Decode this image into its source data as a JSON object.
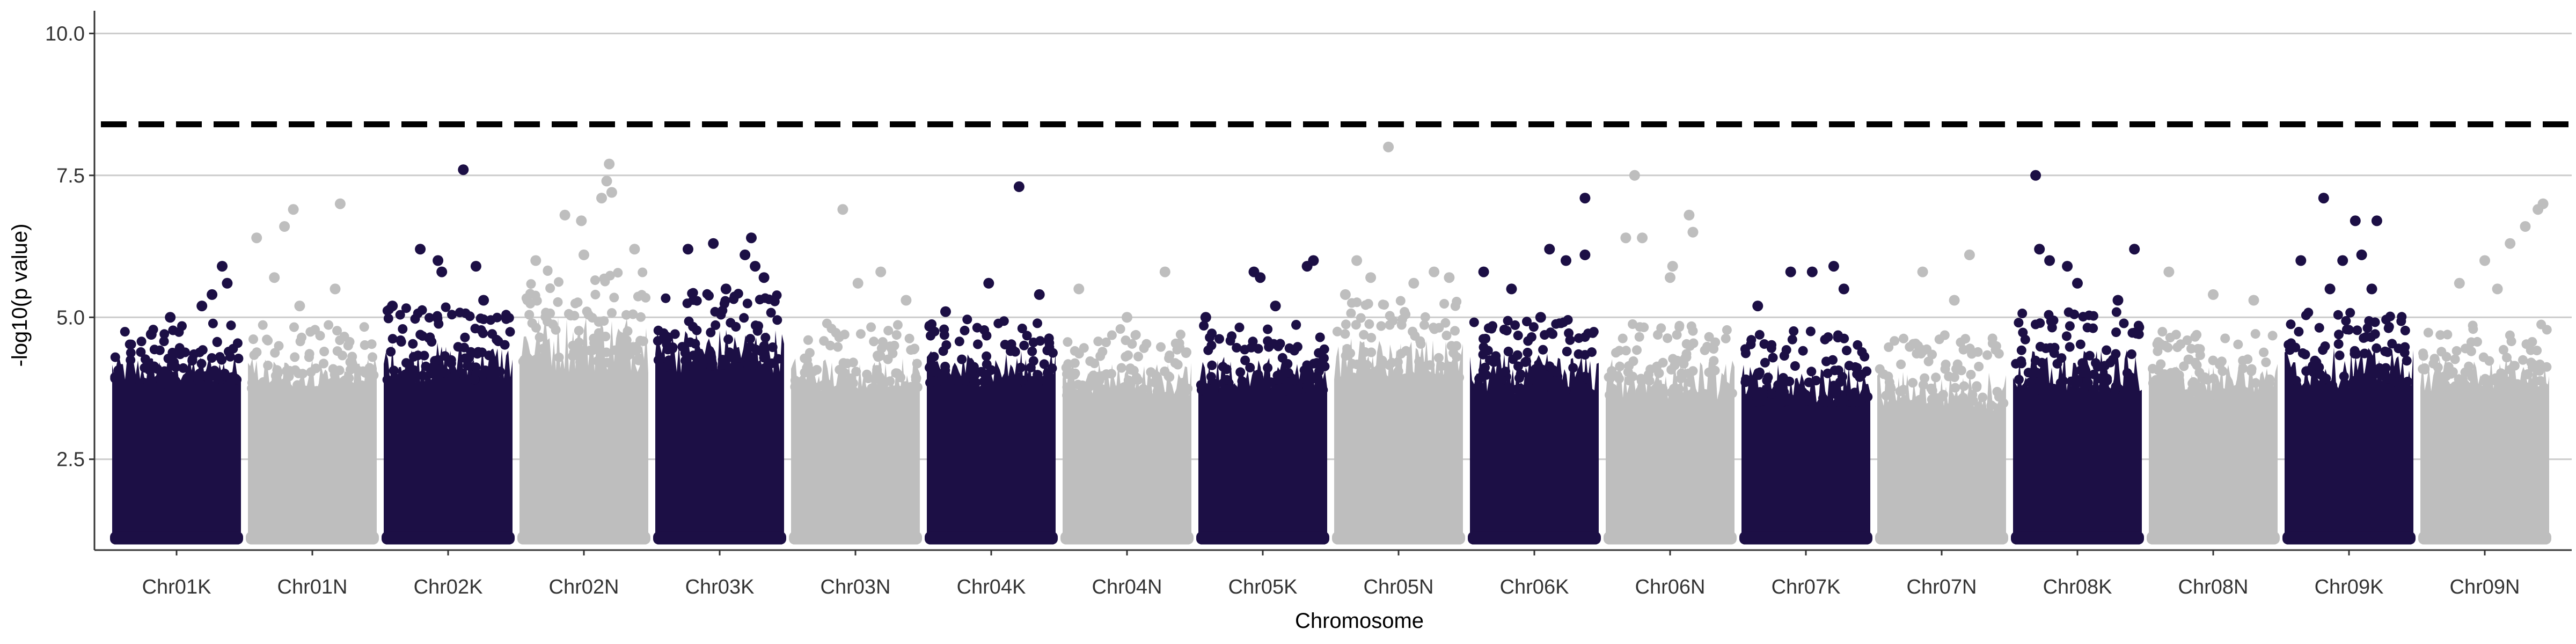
{
  "chart_data": {
    "type": "scatter",
    "subtype": "manhattan",
    "title": "",
    "xlabel": "Chromosome",
    "ylabel": "-log10(p value)",
    "ylim": [
      0.9,
      10.4
    ],
    "yticks": [
      2.5,
      5.0,
      7.5,
      10.0
    ],
    "ytick_labels": [
      "2.5",
      "5.0",
      "7.5",
      "10.0"
    ],
    "grid": {
      "horizontal": true,
      "vertical": false
    },
    "threshold": {
      "value": 8.4,
      "style": "dashed",
      "color": "#000000"
    },
    "colors": {
      "odd": "#1c0f45",
      "even": "#bebebe",
      "grid": "#cccccc",
      "axis": "#333333"
    },
    "categories": [
      "Chr01K",
      "Chr01N",
      "Chr02K",
      "Chr02N",
      "Chr03K",
      "Chr03N",
      "Chr04K",
      "Chr04N",
      "Chr05K",
      "Chr05N",
      "Chr06K",
      "Chr06N",
      "Chr07K",
      "Chr07N",
      "Chr08K",
      "Chr08N",
      "Chr09K",
      "Chr09N"
    ],
    "series": [
      {
        "chromosome": "Chr01K",
        "min": 1.0,
        "dense_top": 4.0,
        "band_top": 4.6,
        "points": [
          [
            0.45,
            5.0
          ],
          [
            0.7,
            5.2
          ],
          [
            0.78,
            5.4
          ],
          [
            0.86,
            5.9
          ],
          [
            0.9,
            5.6
          ],
          [
            0.3,
            4.7
          ]
        ]
      },
      {
        "chromosome": "Chr01N",
        "min": 1.0,
        "dense_top": 3.9,
        "band_top": 4.6,
        "points": [
          [
            0.06,
            6.4
          ],
          [
            0.2,
            5.7
          ],
          [
            0.28,
            6.6
          ],
          [
            0.35,
            6.9
          ],
          [
            0.72,
            7.0
          ],
          [
            0.68,
            5.5
          ],
          [
            0.4,
            5.2
          ]
        ]
      },
      {
        "chromosome": "Chr02K",
        "min": 1.0,
        "dense_top": 4.1,
        "band_top": 4.9,
        "points": [
          [
            0.06,
            5.2
          ],
          [
            0.28,
            6.2
          ],
          [
            0.42,
            6.0
          ],
          [
            0.45,
            5.8
          ],
          [
            0.62,
            7.6
          ],
          [
            0.72,
            5.9
          ],
          [
            0.78,
            5.3
          ]
        ]
      },
      {
        "chromosome": "Chr02N",
        "min": 1.0,
        "dense_top": 4.4,
        "band_top": 5.6,
        "points": [
          [
            0.12,
            6.0
          ],
          [
            0.35,
            6.8
          ],
          [
            0.48,
            6.7
          ],
          [
            0.64,
            7.1
          ],
          [
            0.68,
            7.4
          ],
          [
            0.7,
            7.7
          ],
          [
            0.72,
            7.2
          ],
          [
            0.5,
            6.1
          ],
          [
            0.9,
            6.2
          ]
        ]
      },
      {
        "chromosome": "Chr03K",
        "min": 1.0,
        "dense_top": 4.3,
        "band_top": 5.2,
        "points": [
          [
            0.25,
            6.2
          ],
          [
            0.45,
            6.3
          ],
          [
            0.7,
            6.1
          ],
          [
            0.75,
            6.4
          ],
          [
            0.78,
            5.9
          ],
          [
            0.85,
            5.7
          ],
          [
            0.55,
            5.5
          ]
        ]
      },
      {
        "chromosome": "Chr03N",
        "min": 1.0,
        "dense_top": 3.9,
        "band_top": 4.6,
        "points": [
          [
            0.4,
            6.9
          ],
          [
            0.52,
            5.6
          ],
          [
            0.7,
            5.8
          ],
          [
            0.9,
            5.3
          ]
        ]
      },
      {
        "chromosome": "Chr04K",
        "min": 1.0,
        "dense_top": 4.0,
        "band_top": 4.7,
        "points": [
          [
            0.14,
            5.1
          ],
          [
            0.48,
            5.6
          ],
          [
            0.72,
            7.3
          ],
          [
            0.88,
            5.4
          ]
        ]
      },
      {
        "chromosome": "Chr04N",
        "min": 1.0,
        "dense_top": 3.8,
        "band_top": 4.5,
        "points": [
          [
            0.12,
            5.5
          ],
          [
            0.8,
            5.8
          ],
          [
            0.5,
            5.0
          ]
        ]
      },
      {
        "chromosome": "Chr05K",
        "min": 1.0,
        "dense_top": 3.9,
        "band_top": 4.6,
        "points": [
          [
            0.05,
            5.0
          ],
          [
            0.43,
            5.8
          ],
          [
            0.48,
            5.7
          ],
          [
            0.6,
            5.2
          ],
          [
            0.85,
            5.9
          ],
          [
            0.9,
            6.0
          ]
        ]
      },
      {
        "chromosome": "Chr05N",
        "min": 1.0,
        "dense_top": 4.1,
        "band_top": 5.0,
        "points": [
          [
            0.08,
            5.4
          ],
          [
            0.17,
            6.0
          ],
          [
            0.28,
            5.7
          ],
          [
            0.42,
            8.0
          ],
          [
            0.62,
            5.6
          ],
          [
            0.78,
            5.8
          ],
          [
            0.9,
            5.7
          ]
        ]
      },
      {
        "chromosome": "Chr06K",
        "min": 1.0,
        "dense_top": 3.9,
        "band_top": 4.7,
        "points": [
          [
            0.1,
            5.8
          ],
          [
            0.32,
            5.5
          ],
          [
            0.62,
            6.2
          ],
          [
            0.75,
            6.0
          ],
          [
            0.9,
            7.1
          ],
          [
            0.9,
            6.1
          ],
          [
            0.55,
            5.0
          ]
        ]
      },
      {
        "chromosome": "Chr06N",
        "min": 1.0,
        "dense_top": 3.8,
        "band_top": 4.6,
        "points": [
          [
            0.15,
            6.4
          ],
          [
            0.22,
            7.5
          ],
          [
            0.28,
            6.4
          ],
          [
            0.52,
            5.9
          ],
          [
            0.65,
            6.8
          ],
          [
            0.68,
            6.5
          ],
          [
            0.5,
            5.7
          ]
        ]
      },
      {
        "chromosome": "Chr07K",
        "min": 1.0,
        "dense_top": 3.7,
        "band_top": 4.5,
        "points": [
          [
            0.12,
            5.2
          ],
          [
            0.38,
            5.8
          ],
          [
            0.55,
            5.8
          ],
          [
            0.72,
            5.9
          ],
          [
            0.8,
            5.5
          ]
        ]
      },
      {
        "chromosome": "Chr07N",
        "min": 1.0,
        "dense_top": 3.6,
        "band_top": 4.4,
        "points": [
          [
            0.35,
            5.8
          ],
          [
            0.72,
            6.1
          ],
          [
            0.6,
            5.3
          ]
        ]
      },
      {
        "chromosome": "Chr08K",
        "min": 1.0,
        "dense_top": 3.9,
        "band_top": 4.8,
        "points": [
          [
            0.17,
            7.5
          ],
          [
            0.2,
            6.2
          ],
          [
            0.28,
            6.0
          ],
          [
            0.42,
            5.9
          ],
          [
            0.5,
            5.6
          ],
          [
            0.95,
            6.2
          ],
          [
            0.82,
            5.3
          ]
        ]
      },
      {
        "chromosome": "Chr08N",
        "min": 1.0,
        "dense_top": 3.8,
        "band_top": 4.5,
        "points": [
          [
            0.15,
            5.8
          ],
          [
            0.5,
            5.4
          ],
          [
            0.82,
            5.3
          ]
        ]
      },
      {
        "chromosome": "Chr09K",
        "min": 1.0,
        "dense_top": 4.0,
        "band_top": 4.8,
        "points": [
          [
            0.12,
            6.0
          ],
          [
            0.3,
            7.1
          ],
          [
            0.35,
            5.5
          ],
          [
            0.45,
            6.0
          ],
          [
            0.55,
            6.7
          ],
          [
            0.6,
            6.1
          ],
          [
            0.72,
            6.7
          ],
          [
            0.68,
            5.5
          ]
        ]
      },
      {
        "chromosome": "Chr09N",
        "min": 1.0,
        "dense_top": 3.9,
        "band_top": 4.6,
        "points": [
          [
            0.3,
            5.6
          ],
          [
            0.5,
            6.0
          ],
          [
            0.7,
            6.3
          ],
          [
            0.82,
            6.6
          ],
          [
            0.92,
            6.9
          ],
          [
            0.96,
            7.0
          ],
          [
            0.6,
            5.5
          ]
        ]
      }
    ]
  }
}
